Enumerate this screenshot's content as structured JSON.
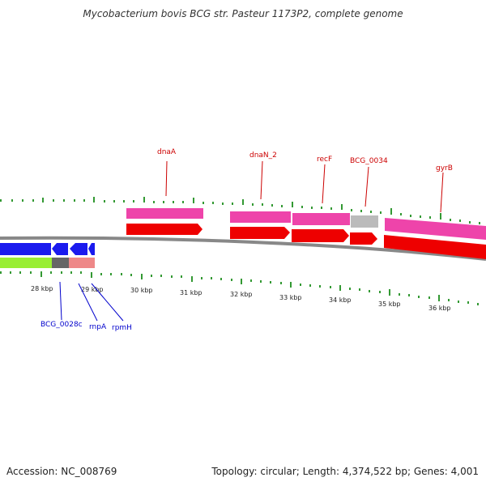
{
  "title": "Mycobacterium bovis BCG str. Pasteur 1173P2, complete genome",
  "accession": "Accession: NC_008769",
  "summary": "Topology: circular; Length: 4,374,522 bp; Genes: 4,001",
  "ticks": [
    "28 kbp",
    "29 kbp",
    "30 kbp",
    "31 kbp",
    "32 kbp",
    "33 kbp",
    "34 kbp",
    "35 kbp",
    "36 kbp"
  ],
  "genes_top": [
    "dnaA",
    "dnaN_2",
    "recF",
    "BCG_0034",
    "gyrB"
  ],
  "genes_bottom": [
    "BCG_0028c",
    "rnpA",
    "rpmH"
  ],
  "colors": {
    "forward_cds": "#ee0000",
    "forward_gene": "#ee44aa",
    "reverse_cds": "#1a1aee",
    "other_feature": "#99ee33",
    "pseudo": "#bbbbbb",
    "backbone": "#888888",
    "ticks": "#339933"
  }
}
